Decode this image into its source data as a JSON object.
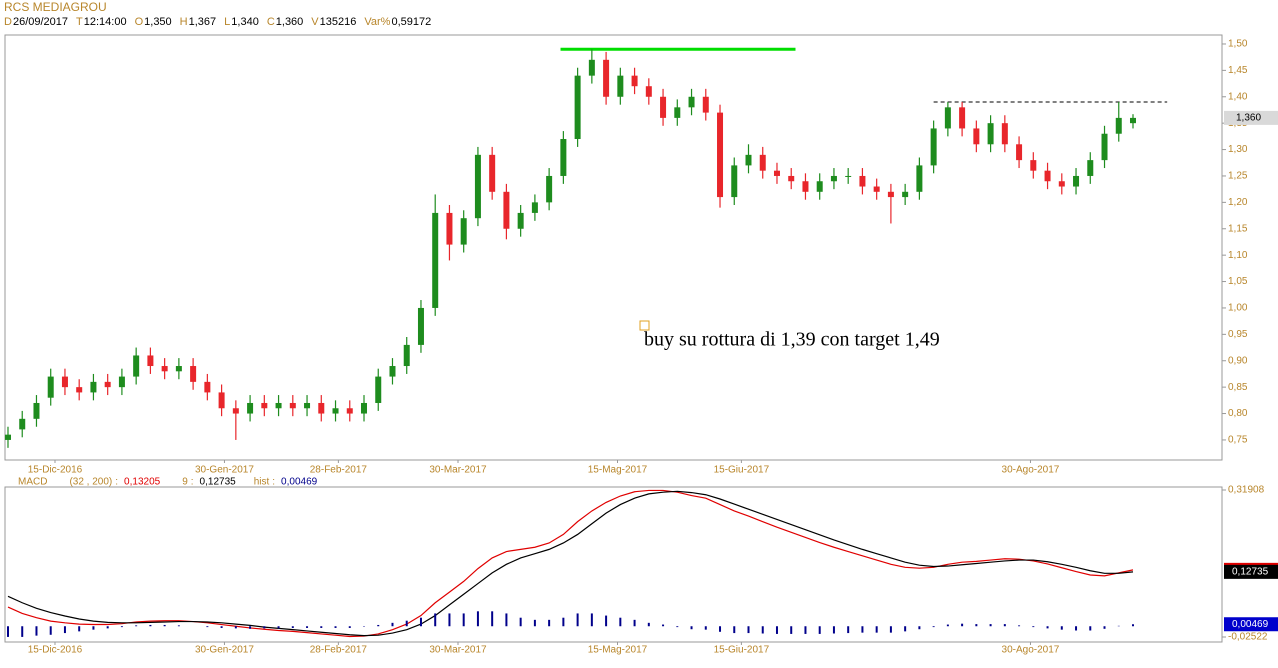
{
  "chart_data": {
    "type": "candlestick",
    "title": "RCS MEDIAGROU",
    "header": [
      {
        "key": "D",
        "value": "26/09/2017"
      },
      {
        "key": "T",
        "value": "12:14:00"
      },
      {
        "key": "O",
        "value": "1,350"
      },
      {
        "key": "H",
        "value": "1,367"
      },
      {
        "key": "L",
        "value": "1,340"
      },
      {
        "key": "C",
        "value": "1,360"
      },
      {
        "key": "V",
        "value": "135216"
      },
      {
        "key": "Var%",
        "value": "0,59172"
      }
    ],
    "xlim": [
      -0.21,
      85.25
    ],
    "xticks": [
      {
        "value": 3.3,
        "label": "15-Dic-2016"
      },
      {
        "value": 15.2,
        "label": "30-Gen-2017"
      },
      {
        "value": 23.2,
        "label": "28-Feb-2017"
      },
      {
        "value": 31.6,
        "label": "30-Mar-2017"
      },
      {
        "value": 42.8,
        "label": "15-Mag-2017"
      },
      {
        "value": 51.5,
        "label": "15-Giu-2017"
      },
      {
        "value": 71.8,
        "label": "30-Ago-2017"
      }
    ],
    "ylim": [
      0.712,
      1.517
    ],
    "yticks": [
      {
        "value": 0.75,
        "label": "0,75"
      },
      {
        "value": 0.8,
        "label": "0,80"
      },
      {
        "value": 0.85,
        "label": "0,85"
      },
      {
        "value": 0.9,
        "label": "0,90"
      },
      {
        "value": 0.95,
        "label": "0,95"
      },
      {
        "value": 1.0,
        "label": "1,00"
      },
      {
        "value": 1.05,
        "label": "1,05"
      },
      {
        "value": 1.1,
        "label": "1,10"
      },
      {
        "value": 1.15,
        "label": "1,15"
      },
      {
        "value": 1.2,
        "label": "1,20"
      },
      {
        "value": 1.25,
        "label": "1,25"
      },
      {
        "value": 1.3,
        "label": "1,30"
      },
      {
        "value": 1.35,
        "label": "1,35"
      },
      {
        "value": 1.4,
        "label": "1,40"
      },
      {
        "value": 1.45,
        "label": "1,45"
      },
      {
        "value": 1.5,
        "label": "1,50"
      }
    ],
    "up_color": "#1e8c1e",
    "down_color": "#e8262b",
    "open": [
      0.75,
      0.77,
      0.79,
      0.83,
      0.87,
      0.85,
      0.84,
      0.86,
      0.85,
      0.87,
      0.91,
      0.89,
      0.88,
      0.89,
      0.86,
      0.84,
      0.81,
      0.8,
      0.82,
      0.81,
      0.82,
      0.81,
      0.82,
      0.8,
      0.81,
      0.8,
      0.82,
      0.87,
      0.89,
      0.93,
      1.0,
      1.18,
      1.12,
      1.17,
      1.29,
      1.22,
      1.15,
      1.18,
      1.2,
      1.25,
      1.32,
      1.44,
      1.47,
      1.4,
      1.44,
      1.42,
      1.4,
      1.36,
      1.38,
      1.4,
      1.37,
      1.21,
      1.27,
      1.29,
      1.26,
      1.25,
      1.24,
      1.22,
      1.24,
      1.25,
      1.25,
      1.23,
      1.22,
      1.21,
      1.22,
      1.27,
      1.34,
      1.38,
      1.34,
      1.31,
      1.35,
      1.31,
      1.28,
      1.26,
      1.24,
      1.23,
      1.25,
      1.28,
      1.33,
      1.35
    ],
    "high": [
      0.775,
      0.805,
      0.835,
      0.885,
      0.885,
      0.865,
      0.875,
      0.875,
      0.885,
      0.925,
      0.925,
      0.905,
      0.905,
      0.905,
      0.875,
      0.855,
      0.825,
      0.835,
      0.835,
      0.835,
      0.835,
      0.835,
      0.835,
      0.825,
      0.825,
      0.835,
      0.885,
      0.905,
      0.945,
      1.015,
      1.215,
      1.195,
      1.185,
      1.305,
      1.305,
      1.235,
      1.195,
      1.215,
      1.265,
      1.335,
      1.455,
      1.49,
      1.485,
      1.455,
      1.455,
      1.435,
      1.415,
      1.395,
      1.415,
      1.415,
      1.385,
      1.285,
      1.31,
      1.305,
      1.275,
      1.265,
      1.255,
      1.255,
      1.265,
      1.265,
      1.265,
      1.245,
      1.235,
      1.235,
      1.285,
      1.355,
      1.39,
      1.39,
      1.355,
      1.365,
      1.365,
      1.325,
      1.295,
      1.275,
      1.255,
      1.265,
      1.295,
      1.345,
      1.39,
      1.367
    ],
    "low": [
      0.735,
      0.755,
      0.775,
      0.815,
      0.835,
      0.825,
      0.825,
      0.835,
      0.835,
      0.855,
      0.875,
      0.865,
      0.865,
      0.845,
      0.825,
      0.795,
      0.75,
      0.785,
      0.795,
      0.795,
      0.795,
      0.795,
      0.785,
      0.785,
      0.785,
      0.785,
      0.805,
      0.855,
      0.875,
      0.915,
      0.985,
      1.09,
      1.105,
      1.155,
      1.205,
      1.13,
      1.135,
      1.165,
      1.185,
      1.235,
      1.305,
      1.425,
      1.385,
      1.385,
      1.405,
      1.385,
      1.345,
      1.345,
      1.365,
      1.355,
      1.19,
      1.195,
      1.255,
      1.245,
      1.235,
      1.225,
      1.205,
      1.205,
      1.225,
      1.235,
      1.215,
      1.205,
      1.16,
      1.195,
      1.205,
      1.255,
      1.325,
      1.325,
      1.295,
      1.295,
      1.295,
      1.265,
      1.245,
      1.225,
      1.215,
      1.215,
      1.235,
      1.265,
      1.315,
      1.34
    ],
    "close": [
      0.76,
      0.79,
      0.82,
      0.87,
      0.85,
      0.84,
      0.86,
      0.85,
      0.87,
      0.91,
      0.89,
      0.88,
      0.89,
      0.86,
      0.84,
      0.81,
      0.8,
      0.82,
      0.81,
      0.82,
      0.81,
      0.82,
      0.8,
      0.81,
      0.8,
      0.82,
      0.87,
      0.89,
      0.93,
      1.0,
      1.18,
      1.12,
      1.17,
      1.29,
      1.22,
      1.15,
      1.18,
      1.2,
      1.25,
      1.32,
      1.44,
      1.47,
      1.4,
      1.44,
      1.42,
      1.4,
      1.36,
      1.38,
      1.4,
      1.37,
      1.21,
      1.27,
      1.29,
      1.26,
      1.25,
      1.24,
      1.22,
      1.24,
      1.25,
      1.25,
      1.23,
      1.22,
      1.21,
      1.22,
      1.27,
      1.34,
      1.38,
      1.34,
      1.31,
      1.35,
      1.31,
      1.28,
      1.26,
      1.24,
      1.23,
      1.25,
      1.28,
      1.33,
      1.36,
      1.36
    ],
    "last_price": {
      "value": 1.36,
      "label": "1,360"
    },
    "lines": [
      {
        "y": 1.49,
        "x0": 38.8,
        "x1": 55.3,
        "color": "#00dd00",
        "dashed": false
      },
      {
        "y": 1.39,
        "x0": 65.0,
        "x1": 81.4,
        "color": "#000000",
        "dashed": true
      }
    ],
    "annotation": "buy su rottura di 1,39 con target 1,49",
    "macd": {
      "separator": ":",
      "params": "(32 , 200)",
      "ylim": [
        -0.0369,
        0.3261
      ],
      "yticks": [
        {
          "value": 0.31908,
          "label": "0,31908"
        },
        {
          "value": -0.02522,
          "label": "-0,02522"
        }
      ],
      "series": [
        {
          "name": "MACD",
          "color": "#e00000",
          "label": "0,13205",
          "last": 0.13205,
          "values": [
            0.045,
            0.03,
            0.02,
            0.012,
            0.008,
            0.005,
            0.004,
            0.004,
            0.006,
            0.01,
            0.012,
            0.013,
            0.013,
            0.011,
            0.008,
            0.004,
            0.0,
            -0.004,
            -0.007,
            -0.01,
            -0.012,
            -0.015,
            -0.018,
            -0.021,
            -0.024,
            -0.023,
            -0.018,
            -0.008,
            0.005,
            0.025,
            0.055,
            0.08,
            0.105,
            0.135,
            0.16,
            0.175,
            0.18,
            0.185,
            0.195,
            0.215,
            0.245,
            0.27,
            0.29,
            0.305,
            0.315,
            0.318,
            0.318,
            0.314,
            0.306,
            0.3,
            0.285,
            0.27,
            0.258,
            0.245,
            0.232,
            0.22,
            0.208,
            0.196,
            0.185,
            0.175,
            0.165,
            0.155,
            0.145,
            0.138,
            0.136,
            0.138,
            0.145,
            0.15,
            0.152,
            0.155,
            0.158,
            0.157,
            0.153,
            0.146,
            0.137,
            0.128,
            0.12,
            0.118,
            0.125,
            0.13205
          ]
        },
        {
          "name": "9",
          "color": "#000000",
          "label": "0,12735",
          "last": 0.12735,
          "values": [
            0.07,
            0.055,
            0.042,
            0.032,
            0.024,
            0.017,
            0.012,
            0.009,
            0.008,
            0.008,
            0.009,
            0.01,
            0.011,
            0.011,
            0.01,
            0.008,
            0.005,
            0.002,
            -0.002,
            -0.005,
            -0.008,
            -0.011,
            -0.014,
            -0.017,
            -0.02,
            -0.022,
            -0.021,
            -0.016,
            -0.008,
            0.005,
            0.025,
            0.05,
            0.075,
            0.1,
            0.125,
            0.145,
            0.16,
            0.17,
            0.18,
            0.195,
            0.215,
            0.24,
            0.265,
            0.285,
            0.3,
            0.31,
            0.314,
            0.316,
            0.313,
            0.308,
            0.298,
            0.286,
            0.274,
            0.262,
            0.25,
            0.238,
            0.226,
            0.214,
            0.202,
            0.191,
            0.18,
            0.17,
            0.16,
            0.15,
            0.143,
            0.14,
            0.141,
            0.144,
            0.147,
            0.15,
            0.153,
            0.155,
            0.155,
            0.151,
            0.145,
            0.138,
            0.13,
            0.124,
            0.124,
            0.12735
          ]
        },
        {
          "name": "hist",
          "color": "#00008b",
          "label": "0,00469",
          "last": 0.00469,
          "values": [
            -0.025,
            -0.025,
            -0.022,
            -0.02,
            -0.016,
            -0.012,
            -0.008,
            -0.005,
            -0.002,
            0.002,
            0.003,
            0.003,
            0.002,
            0.0,
            -0.002,
            -0.004,
            -0.005,
            -0.006,
            -0.005,
            -0.005,
            -0.004,
            -0.004,
            -0.004,
            -0.004,
            -0.004,
            -0.001,
            0.003,
            0.008,
            0.013,
            0.02,
            0.03,
            0.03,
            0.03,
            0.035,
            0.035,
            0.03,
            0.02,
            0.015,
            0.015,
            0.02,
            0.03,
            0.03,
            0.025,
            0.02,
            0.015,
            0.008,
            0.004,
            -0.002,
            -0.007,
            -0.008,
            -0.013,
            -0.016,
            -0.016,
            -0.017,
            -0.018,
            -0.018,
            -0.018,
            -0.018,
            -0.017,
            -0.016,
            -0.015,
            -0.015,
            -0.015,
            -0.012,
            -0.007,
            -0.002,
            0.004,
            0.006,
            0.005,
            0.005,
            0.005,
            0.002,
            -0.002,
            -0.005,
            -0.008,
            -0.01,
            -0.01,
            -0.006,
            0.001,
            0.00469
          ]
        }
      ]
    }
  }
}
